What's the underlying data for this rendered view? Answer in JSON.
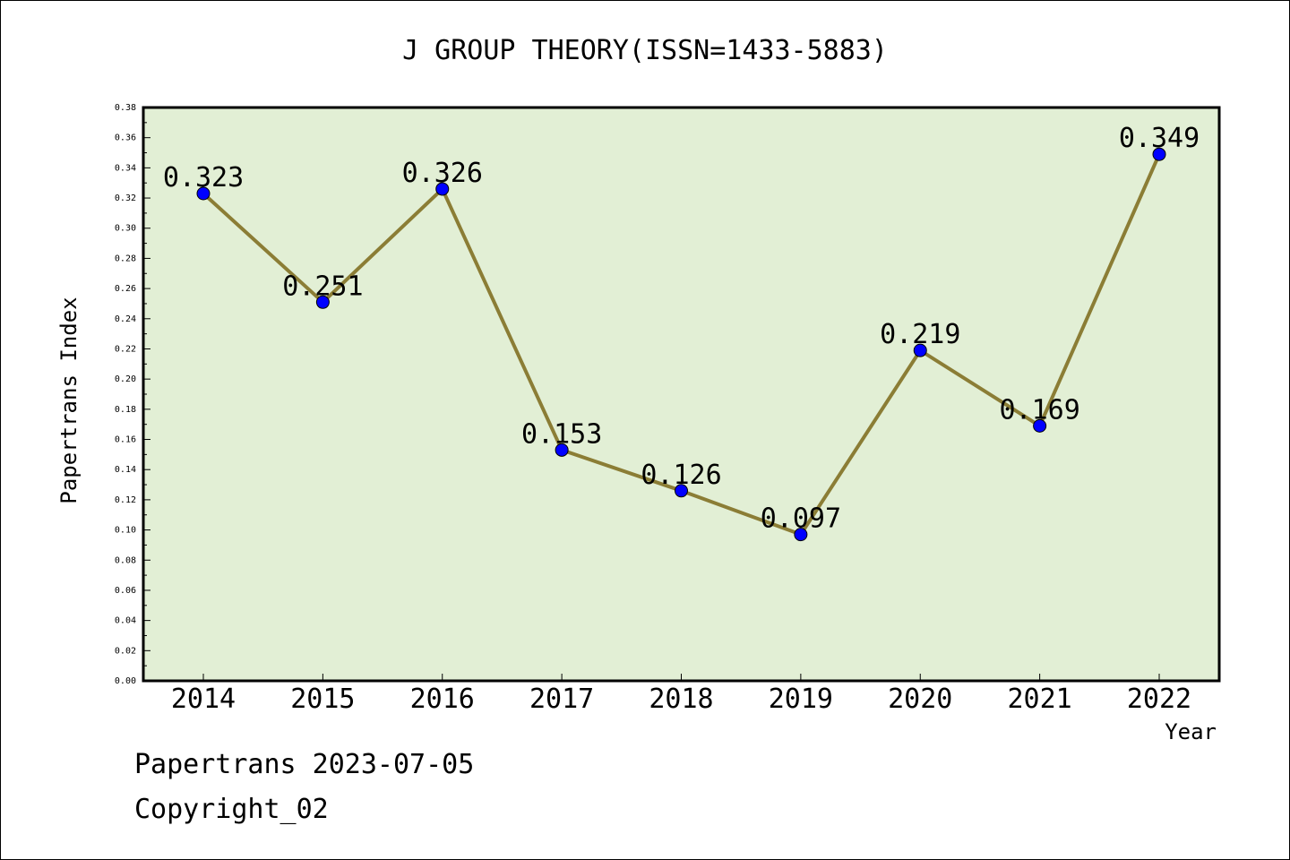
{
  "chart_data": {
    "type": "line",
    "title": "J GROUP THEORY(ISSN=1433-5883)",
    "xlabel": "Year",
    "ylabel": "Papertrans Index",
    "categories": [
      "2014",
      "2015",
      "2016",
      "2017",
      "2018",
      "2019",
      "2020",
      "2021",
      "2022"
    ],
    "series": [
      {
        "values": [
          0.323,
          0.251,
          0.326,
          0.153,
          0.126,
          0.097,
          0.219,
          0.169,
          0.349
        ]
      }
    ],
    "data_labels": [
      "0.323",
      "0.251",
      "0.326",
      "0.153",
      "0.126",
      "0.097",
      "0.219",
      "0.169",
      "0.349"
    ],
    "ylim": [
      0,
      0.38
    ],
    "yticks": [
      "0.00",
      "0.02",
      "0.04",
      "0.06",
      "0.08",
      "0.10",
      "0.12",
      "0.14",
      "0.16",
      "0.18",
      "0.20",
      "0.22",
      "0.24",
      "0.26",
      "0.28",
      "0.30",
      "0.32",
      "0.34",
      "0.36",
      "0.38"
    ],
    "grid": false,
    "colors": {
      "plot_background": "#e2efd5",
      "line": "#8b7d35",
      "marker": "#0000ff"
    }
  },
  "footer": {
    "source": "Papertrans 2023-07-05",
    "copyright": "Copyright_02"
  }
}
